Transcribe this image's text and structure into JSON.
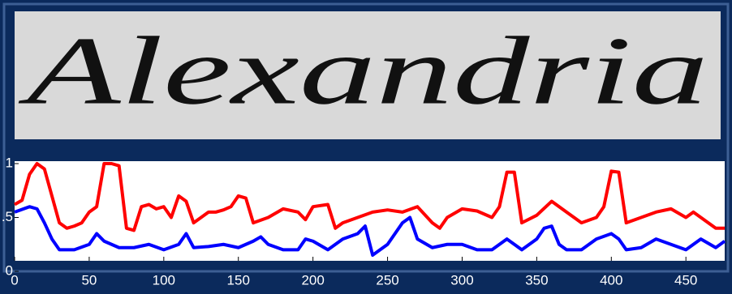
{
  "image_text": "Alexandria",
  "chart_data": {
    "type": "line",
    "xlim": [
      0,
      476
    ],
    "ylim": [
      0,
      1
    ],
    "xticks": [
      0,
      50,
      100,
      150,
      200,
      250,
      300,
      350,
      400,
      450
    ],
    "yticks": [
      0,
      {
        "value": 0.5,
        "label": ".5"
      },
      1
    ],
    "series": [
      {
        "color": "#ff0000",
        "x": [
          0,
          5,
          10,
          15,
          20,
          25,
          30,
          35,
          40,
          45,
          50,
          55,
          60,
          65,
          70,
          75,
          80,
          85,
          90,
          95,
          100,
          105,
          110,
          115,
          120,
          125,
          130,
          135,
          140,
          145,
          150,
          155,
          160,
          170,
          180,
          190,
          195,
          200,
          210,
          215,
          220,
          230,
          240,
          250,
          260,
          270,
          280,
          285,
          290,
          300,
          310,
          320,
          325,
          330,
          335,
          340,
          350,
          360,
          370,
          380,
          390,
          395,
          400,
          405,
          410,
          420,
          430,
          440,
          450,
          455,
          460,
          470,
          476
        ],
        "values": [
          0.62,
          0.66,
          0.9,
          1.0,
          0.95,
          0.7,
          0.45,
          0.4,
          0.42,
          0.45,
          0.55,
          0.6,
          1.0,
          1.0,
          0.98,
          0.4,
          0.38,
          0.6,
          0.62,
          0.58,
          0.6,
          0.5,
          0.7,
          0.65,
          0.45,
          0.5,
          0.55,
          0.55,
          0.57,
          0.6,
          0.7,
          0.68,
          0.45,
          0.5,
          0.58,
          0.55,
          0.48,
          0.6,
          0.62,
          0.4,
          0.45,
          0.5,
          0.55,
          0.57,
          0.55,
          0.6,
          0.45,
          0.4,
          0.5,
          0.58,
          0.56,
          0.5,
          0.6,
          0.92,
          0.92,
          0.45,
          0.52,
          0.65,
          0.55,
          0.45,
          0.5,
          0.6,
          0.93,
          0.92,
          0.45,
          0.5,
          0.55,
          0.58,
          0.5,
          0.55,
          0.5,
          0.4,
          0.4
        ]
      },
      {
        "color": "#0000ff",
        "x": [
          0,
          10,
          15,
          20,
          25,
          30,
          40,
          50,
          55,
          60,
          70,
          80,
          90,
          100,
          110,
          115,
          120,
          130,
          140,
          150,
          160,
          165,
          170,
          180,
          190,
          195,
          200,
          210,
          220,
          230,
          235,
          240,
          250,
          260,
          265,
          270,
          280,
          290,
          300,
          310,
          320,
          330,
          335,
          340,
          350,
          355,
          360,
          365,
          370,
          380,
          390,
          400,
          405,
          410,
          420,
          430,
          440,
          450,
          460,
          470,
          476
        ],
        "values": [
          0.55,
          0.6,
          0.58,
          0.45,
          0.3,
          0.2,
          0.2,
          0.25,
          0.35,
          0.28,
          0.22,
          0.22,
          0.25,
          0.2,
          0.25,
          0.35,
          0.22,
          0.23,
          0.25,
          0.22,
          0.28,
          0.32,
          0.25,
          0.2,
          0.2,
          0.3,
          0.28,
          0.2,
          0.3,
          0.35,
          0.42,
          0.15,
          0.25,
          0.45,
          0.5,
          0.3,
          0.22,
          0.25,
          0.25,
          0.2,
          0.2,
          0.3,
          0.25,
          0.2,
          0.3,
          0.4,
          0.42,
          0.25,
          0.2,
          0.2,
          0.3,
          0.35,
          0.3,
          0.2,
          0.22,
          0.3,
          0.25,
          0.2,
          0.3,
          0.22,
          0.28
        ]
      }
    ]
  }
}
